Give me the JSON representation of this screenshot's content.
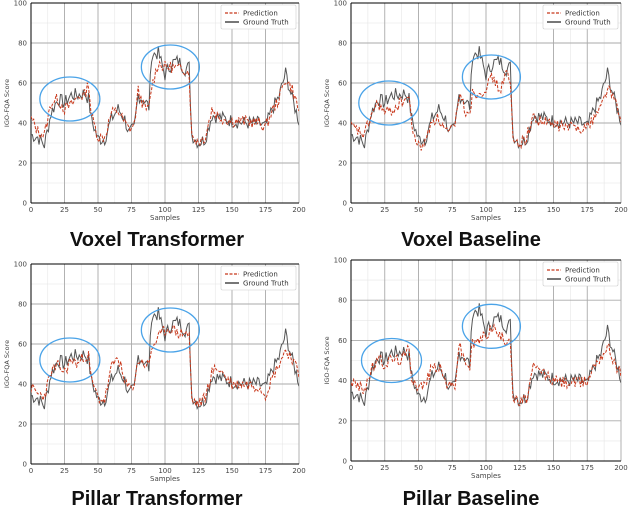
{
  "colors": {
    "prediction": "#c8371a",
    "ground_truth": "#555555",
    "highlight": "#4aa3e8",
    "grid_major": "#aaaaaa",
    "grid_minor": "#e6e6e6"
  },
  "legend": {
    "prediction": "Prediction",
    "ground_truth": "Ground Truth"
  },
  "axes": {
    "xlabel": "Samples",
    "ylabel": "IGO-FQA Score",
    "xticks": [
      "0",
      "25",
      "50",
      "75",
      "100",
      "125",
      "150",
      "175",
      "200"
    ],
    "yticks": [
      "0",
      "20",
      "40",
      "60",
      "80",
      "100"
    ]
  },
  "panels": [
    {
      "title": "Voxel Transformer"
    },
    {
      "title": "Voxel Baseline"
    },
    {
      "title": "Pillar Transformer"
    },
    {
      "title": "Pillar Baseline"
    }
  ],
  "chart_data": [
    {
      "type": "line",
      "title": "Voxel Transformer",
      "xlabel": "Samples",
      "ylabel": "IGO-FQA Score",
      "xlim": [
        0,
        200
      ],
      "ylim": [
        0,
        100
      ],
      "grid": true,
      "legend_position": "upper right",
      "x": [
        0,
        5,
        10,
        15,
        20,
        25,
        30,
        35,
        40,
        43,
        45,
        50,
        55,
        60,
        65,
        70,
        73,
        77,
        80,
        85,
        88,
        90,
        95,
        100,
        105,
        110,
        115,
        118,
        120,
        125,
        130,
        135,
        140,
        150,
        160,
        170,
        175,
        180,
        185,
        190,
        195,
        200
      ],
      "series": [
        {
          "name": "Prediction",
          "values": [
            42,
            36,
            34,
            50,
            52,
            47,
            49,
            53,
            54,
            60,
            44,
            33,
            33,
            45,
            46,
            40,
            37,
            39,
            56,
            47,
            47,
            58,
            70,
            68,
            68,
            67,
            67,
            65,
            33,
            31,
            33,
            47,
            43,
            41,
            41,
            40,
            38,
            46,
            52,
            62,
            57,
            46
          ]
        },
        {
          "name": "Ground Truth",
          "values": [
            34,
            33,
            29,
            45,
            52,
            50,
            54,
            54,
            55,
            52,
            42,
            32,
            32,
            42,
            47,
            42,
            35,
            37,
            54,
            51,
            48,
            74,
            75,
            64,
            70,
            71,
            67,
            68,
            34,
            30,
            32,
            44,
            43,
            41,
            40,
            40,
            38,
            47,
            53,
            65,
            52,
            41
          ]
        }
      ],
      "annotations": [
        {
          "type": "ellipse",
          "center": [
            29,
            52
          ]
        },
        {
          "type": "ellipse",
          "center": [
            104,
            68
          ]
        }
      ]
    },
    {
      "type": "line",
      "title": "Voxel Baseline",
      "xlabel": "Samples",
      "ylabel": "IGO-FQA Score",
      "xlim": [
        0,
        200
      ],
      "ylim": [
        0,
        100
      ],
      "grid": true,
      "legend_position": "upper right",
      "x": [
        0,
        5,
        10,
        15,
        20,
        25,
        30,
        35,
        40,
        43,
        45,
        50,
        55,
        60,
        65,
        70,
        73,
        77,
        80,
        85,
        88,
        90,
        95,
        100,
        105,
        110,
        115,
        118,
        120,
        125,
        130,
        135,
        140,
        150,
        160,
        170,
        175,
        180,
        185,
        190,
        195,
        200
      ],
      "series": [
        {
          "name": "Prediction",
          "values": [
            38,
            36,
            34,
            44,
            50,
            45,
            46,
            49,
            52,
            53,
            38,
            28,
            30,
            42,
            42,
            36,
            35,
            38,
            55,
            46,
            46,
            55,
            55,
            58,
            63,
            56,
            65,
            60,
            31,
            30,
            33,
            43,
            41,
            39,
            38,
            38,
            38,
            43,
            48,
            58,
            52,
            41
          ]
        },
        {
          "name": "Ground Truth",
          "values": [
            34,
            33,
            29,
            45,
            52,
            50,
            54,
            54,
            55,
            52,
            42,
            32,
            32,
            42,
            47,
            42,
            35,
            37,
            54,
            51,
            48,
            74,
            75,
            64,
            70,
            71,
            67,
            68,
            34,
            30,
            32,
            44,
            43,
            41,
            40,
            40,
            38,
            47,
            53,
            65,
            52,
            41
          ]
        }
      ],
      "annotations": [
        {
          "type": "ellipse",
          "center": [
            28,
            50
          ]
        },
        {
          "type": "ellipse",
          "center": [
            104,
            63
          ]
        }
      ]
    },
    {
      "type": "line",
      "title": "Pillar Transformer",
      "xlabel": "Samples",
      "ylabel": "IGO-FQA Score",
      "xlim": [
        0,
        200
      ],
      "ylim": [
        0,
        100
      ],
      "grid": true,
      "legend_position": "upper right",
      "x": [
        0,
        5,
        10,
        15,
        20,
        25,
        30,
        35,
        40,
        43,
        45,
        50,
        55,
        60,
        65,
        70,
        73,
        77,
        80,
        85,
        88,
        90,
        95,
        100,
        105,
        110,
        115,
        118,
        120,
        125,
        130,
        135,
        140,
        150,
        160,
        170,
        175,
        180,
        185,
        190,
        195,
        200
      ],
      "series": [
        {
          "name": "Prediction",
          "values": [
            38,
            35,
            34,
            46,
            49,
            46,
            52,
            50,
            54,
            54,
            42,
            33,
            32,
            48,
            54,
            40,
            38,
            40,
            52,
            50,
            49,
            58,
            63,
            67,
            68,
            65,
            66,
            64,
            32,
            30,
            33,
            46,
            48,
            40,
            40,
            39,
            35,
            43,
            50,
            57,
            53,
            44
          ]
        },
        {
          "name": "Ground Truth",
          "values": [
            34,
            33,
            29,
            45,
            52,
            50,
            54,
            54,
            55,
            52,
            42,
            32,
            32,
            42,
            47,
            42,
            35,
            37,
            54,
            51,
            48,
            74,
            75,
            64,
            70,
            71,
            67,
            68,
            34,
            30,
            32,
            44,
            43,
            41,
            40,
            40,
            38,
            47,
            53,
            65,
            52,
            41
          ]
        }
      ],
      "annotations": [
        {
          "type": "ellipse",
          "center": [
            29,
            52
          ]
        },
        {
          "type": "ellipse",
          "center": [
            104,
            67
          ]
        }
      ]
    },
    {
      "type": "line",
      "title": "Pillar Baseline",
      "xlabel": "Samples",
      "ylabel": "IGO-FQA Score",
      "xlim": [
        0,
        200
      ],
      "ylim": [
        0,
        100
      ],
      "grid": true,
      "legend_position": "upper right",
      "x": [
        0,
        5,
        10,
        15,
        20,
        25,
        30,
        35,
        40,
        43,
        45,
        50,
        55,
        60,
        65,
        70,
        73,
        77,
        80,
        85,
        88,
        90,
        95,
        100,
        105,
        110,
        115,
        118,
        120,
        125,
        130,
        135,
        140,
        150,
        160,
        170,
        175,
        180,
        185,
        190,
        195,
        200
      ],
      "series": [
        {
          "name": "Prediction",
          "values": [
            40,
            37,
            36,
            45,
            51,
            48,
            51,
            50,
            52,
            57,
            42,
            37,
            38,
            47,
            47,
            40,
            37,
            38,
            58,
            49,
            47,
            58,
            60,
            63,
            67,
            62,
            60,
            62,
            31,
            29,
            31,
            46,
            45,
            40,
            39,
            39,
            40,
            48,
            52,
            57,
            50,
            43
          ]
        },
        {
          "name": "Ground Truth",
          "values": [
            34,
            33,
            29,
            45,
            52,
            50,
            54,
            54,
            55,
            52,
            42,
            32,
            32,
            42,
            47,
            42,
            35,
            37,
            54,
            51,
            48,
            74,
            75,
            64,
            70,
            71,
            67,
            68,
            34,
            30,
            32,
            44,
            43,
            41,
            40,
            40,
            38,
            47,
            53,
            65,
            52,
            41
          ]
        }
      ],
      "annotations": [
        {
          "type": "ellipse",
          "center": [
            30,
            50
          ]
        },
        {
          "type": "ellipse",
          "center": [
            104,
            67
          ]
        }
      ]
    }
  ]
}
